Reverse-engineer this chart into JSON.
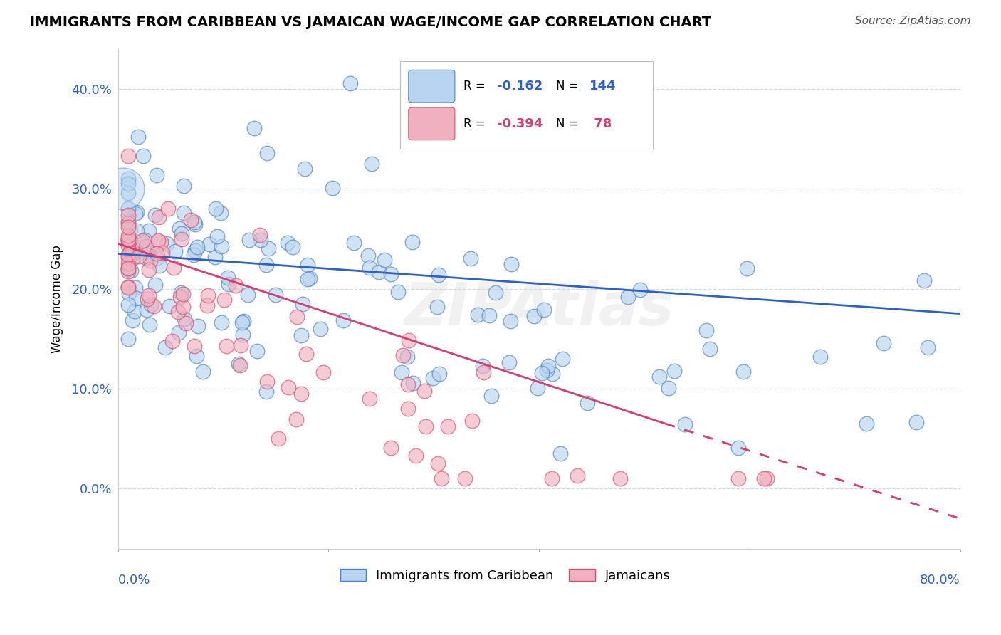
{
  "title": "IMMIGRANTS FROM CARIBBEAN VS JAMAICAN WAGE/INCOME GAP CORRELATION CHART",
  "source": "Source: ZipAtlas.com",
  "ylabel": "Wage/Income Gap",
  "ytick_labels": [
    "0.0%",
    "10.0%",
    "20.0%",
    "30.0%",
    "40.0%"
  ],
  "ytick_values": [
    0.0,
    0.1,
    0.2,
    0.3,
    0.4
  ],
  "xlim": [
    0.0,
    0.8
  ],
  "ylim": [
    -0.06,
    0.44
  ],
  "blue_R": -0.162,
  "blue_N": 144,
  "pink_R": -0.394,
  "pink_N": 78,
  "blue_face_color": "#b8d4f0",
  "blue_edge_color": "#5080c0",
  "pink_face_color": "#f0b0c0",
  "pink_edge_color": "#d05070",
  "blue_line_color": "#3060c0",
  "pink_line_color": "#d04070",
  "grid_color": "#d0d8e8",
  "legend_label_blue": "Immigrants from Caribbean",
  "legend_label_pink": "Jamaicans",
  "blue_line_x0": 0.0,
  "blue_line_x1": 0.8,
  "blue_line_y0": 0.235,
  "blue_line_y1": 0.175,
  "pink_line_x0": 0.0,
  "pink_line_x1": 0.52,
  "pink_line_y0": 0.245,
  "pink_line_y1": 0.065,
  "pink_line_dash_x0": 0.52,
  "pink_line_dash_x1": 0.8,
  "pink_line_dash_y0": 0.065,
  "pink_line_dash_y1": -0.03
}
